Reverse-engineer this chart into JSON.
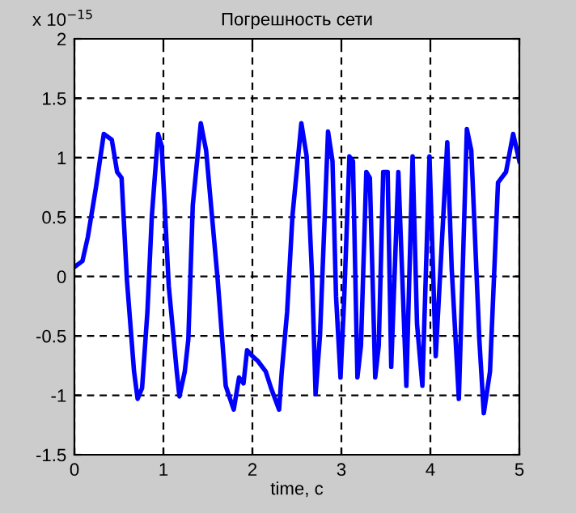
{
  "chart_data": {
    "type": "line",
    "title": "Погрешность сети",
    "xlabel": "time, c",
    "annotations": [
      "x 10$^{−15}$"
    ],
    "series": [
      {
        "color": "#0000ff",
        "x": [
          0,
          0.09,
          0.15,
          0.24,
          0.33,
          0.42,
          0.48,
          0.53,
          0.59,
          0.67,
          0.71,
          0.76,
          0.82,
          0.87,
          0.94,
          0.98,
          1.06,
          1.15,
          1.18,
          1.24,
          1.28,
          1.33,
          1.42,
          1.48,
          1.61,
          1.7,
          1.79,
          1.85,
          1.9,
          1.94,
          2.0,
          2.06,
          2.15,
          2.21,
          2.3,
          2.33,
          2.39,
          2.45,
          2.55,
          2.61,
          2.67,
          2.71,
          2.76,
          2.85,
          2.9,
          2.94,
          2.99,
          3.03,
          3.09,
          3.13,
          3.18,
          3.22,
          3.28,
          3.32,
          3.38,
          3.42,
          3.47,
          3.52,
          3.56,
          3.64,
          3.73,
          3.8,
          3.85,
          3.91,
          3.99,
          4.06,
          4.19,
          4.24,
          4.32,
          4.41,
          4.46,
          4.55,
          4.6,
          4.67,
          4.76,
          4.85,
          4.93,
          5.0
        ],
        "values": [
          0.08,
          0.13,
          0.33,
          0.74,
          1.2,
          1.15,
          0.88,
          0.83,
          -0.03,
          -0.8,
          -1.03,
          -0.94,
          -0.3,
          0.51,
          1.2,
          1.1,
          -0.08,
          -0.8,
          -1.01,
          -0.8,
          -0.53,
          0.6,
          1.29,
          1.06,
          -0.03,
          -0.92,
          -1.12,
          -0.85,
          -0.9,
          -0.62,
          -0.67,
          -0.71,
          -0.8,
          -0.94,
          -1.12,
          -0.8,
          -0.3,
          0.51,
          1.29,
          1.01,
          0.01,
          -0.99,
          -0.49,
          1.22,
          0.97,
          -0.17,
          -0.85,
          -0.21,
          1.01,
          0.97,
          -0.85,
          -0.58,
          0.88,
          0.83,
          -0.85,
          -0.58,
          0.88,
          0.88,
          -0.76,
          0.88,
          -0.92,
          1.01,
          -0.4,
          -0.92,
          1.01,
          -0.67,
          1.13,
          0.06,
          -1.03,
          1.24,
          1.06,
          -0.53,
          -1.15,
          -0.8,
          0.79,
          0.88,
          1.2,
          0.97
        ]
      }
    ],
    "xlim": [
      0,
      5
    ],
    "xticks": [
      0,
      1,
      2,
      3,
      4,
      5
    ],
    "ylim": [
      -1.5,
      2
    ],
    "yticks": [
      -1.5,
      -1,
      -0.5,
      0,
      0.5,
      1,
      1.5,
      2
    ],
    "grid": true,
    "legend": false,
    "marker": "none",
    "line_style": "solid"
  }
}
